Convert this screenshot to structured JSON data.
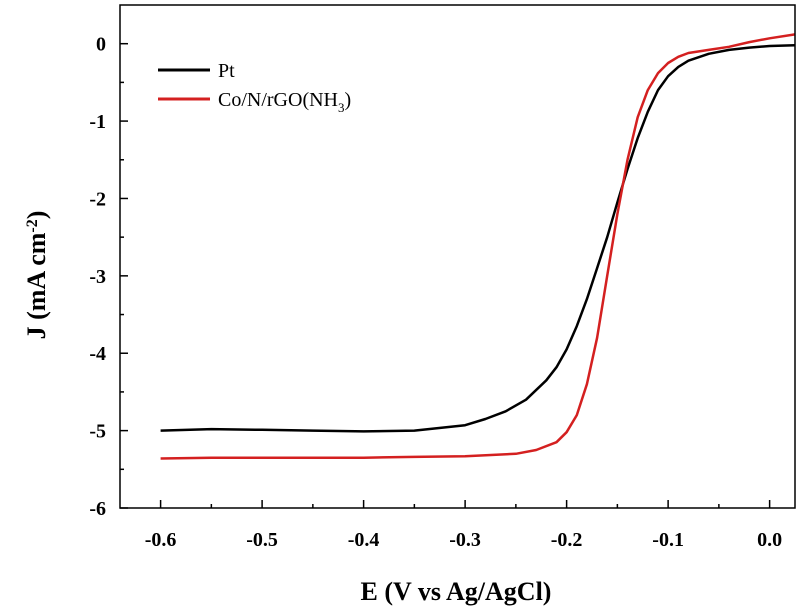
{
  "chart_data": {
    "type": "line",
    "title": "",
    "xlabel": "E (V vs Ag/AgCl)",
    "ylabel_main": "J (mA cm",
    "ylabel_sup": "-2",
    "ylabel_close": ")",
    "xlim": [
      -0.64,
      0.025
    ],
    "ylim": [
      -6,
      0.5
    ],
    "x_ticks": [
      -0.6,
      -0.5,
      -0.4,
      -0.3,
      -0.2,
      -0.1,
      0.0
    ],
    "x_tick_labels": [
      "-0.6",
      "-0.5",
      "-0.4",
      "-0.3",
      "-0.2",
      "-0.1",
      "0.0"
    ],
    "y_ticks": [
      0,
      -1,
      -2,
      -3,
      -4,
      -5,
      -6
    ],
    "y_tick_labels": [
      "0",
      "-1",
      "-2",
      "-3",
      "-4",
      "-5",
      "-6"
    ],
    "legend_position": "top-left",
    "series": [
      {
        "name": "Pt",
        "legend_main": "Pt",
        "legend_sub": "",
        "legend_close": "",
        "color": "#000000",
        "x": [
          -0.6,
          -0.55,
          -0.5,
          -0.45,
          -0.4,
          -0.35,
          -0.3,
          -0.28,
          -0.26,
          -0.24,
          -0.22,
          -0.21,
          -0.2,
          -0.19,
          -0.18,
          -0.17,
          -0.16,
          -0.15,
          -0.14,
          -0.13,
          -0.12,
          -0.11,
          -0.1,
          -0.09,
          -0.08,
          -0.06,
          -0.04,
          -0.02,
          0.0,
          0.025
        ],
        "y": [
          -5.0,
          -4.98,
          -4.99,
          -5.0,
          -5.01,
          -5.0,
          -4.93,
          -4.85,
          -4.75,
          -4.6,
          -4.35,
          -4.18,
          -3.95,
          -3.65,
          -3.3,
          -2.9,
          -2.5,
          -2.05,
          -1.62,
          -1.22,
          -0.88,
          -0.6,
          -0.42,
          -0.3,
          -0.22,
          -0.13,
          -0.08,
          -0.05,
          -0.03,
          -0.02
        ]
      },
      {
        "name": "Co/N/rGO(NH3)",
        "legend_main": "Co/N/rGO(NH",
        "legend_sub": "3",
        "legend_close": ")",
        "color": "#d42020",
        "x": [
          -0.6,
          -0.55,
          -0.5,
          -0.45,
          -0.4,
          -0.35,
          -0.3,
          -0.25,
          -0.23,
          -0.21,
          -0.2,
          -0.19,
          -0.18,
          -0.17,
          -0.16,
          -0.15,
          -0.14,
          -0.13,
          -0.12,
          -0.11,
          -0.1,
          -0.09,
          -0.08,
          -0.06,
          -0.04,
          -0.02,
          0.0,
          0.025
        ],
        "y": [
          -5.36,
          -5.35,
          -5.35,
          -5.35,
          -5.35,
          -5.34,
          -5.33,
          -5.3,
          -5.25,
          -5.15,
          -5.02,
          -4.8,
          -4.4,
          -3.8,
          -3.0,
          -2.2,
          -1.5,
          -0.95,
          -0.6,
          -0.38,
          -0.25,
          -0.17,
          -0.12,
          -0.08,
          -0.04,
          0.02,
          0.07,
          0.12
        ]
      }
    ]
  }
}
